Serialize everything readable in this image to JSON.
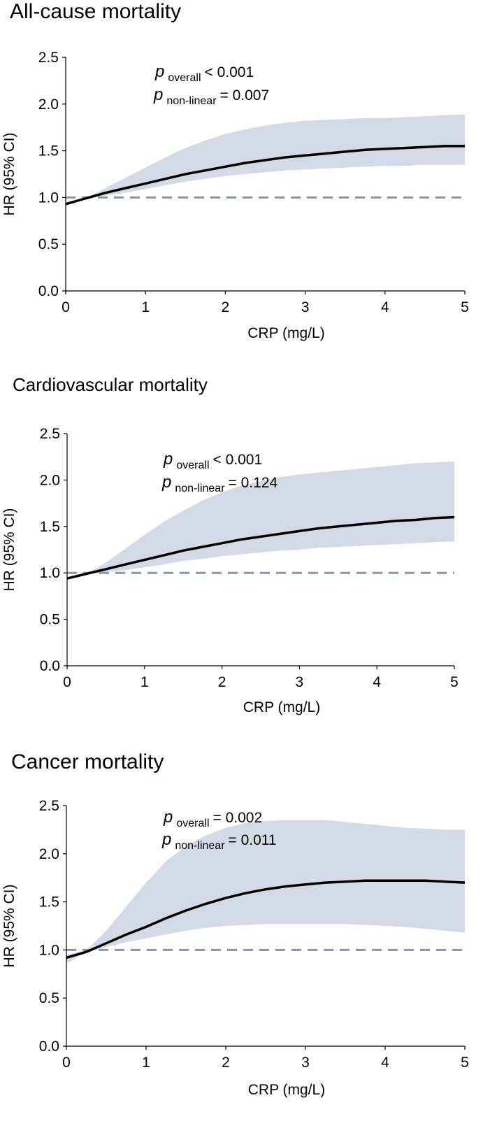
{
  "chart_data": [
    {
      "type": "line",
      "title": "All-cause mortality",
      "xlabel": "CRP (mg/L)",
      "ylabel": "HR (95% CI)",
      "xlim": [
        0,
        5
      ],
      "ylim": [
        0,
        2.5
      ],
      "x_ticks": [
        "0",
        "1",
        "2",
        "3",
        "4",
        "5"
      ],
      "y_ticks": [
        "0.0",
        "0.5",
        "1.0",
        "1.5",
        "2.0",
        "2.5"
      ],
      "reference_line": 1.0,
      "annotation": {
        "p_symbol": "p",
        "overall_label": "overall",
        "overall_value": "< 0.001",
        "nonlinear_label": "non-linear",
        "nonlinear_value": "= 0.007"
      },
      "series": [
        {
          "name": "HR",
          "x": [
            0,
            0.25,
            0.5,
            0.75,
            1.0,
            1.25,
            1.5,
            1.75,
            2.0,
            2.25,
            2.5,
            2.75,
            3.0,
            3.25,
            3.5,
            3.75,
            4.0,
            4.25,
            4.5,
            4.75,
            5.0
          ],
          "hr": [
            0.93,
            0.99,
            1.05,
            1.1,
            1.15,
            1.2,
            1.25,
            1.29,
            1.33,
            1.37,
            1.4,
            1.43,
            1.45,
            1.47,
            1.49,
            1.51,
            1.52,
            1.53,
            1.54,
            1.55,
            1.55
          ],
          "lower": [
            0.93,
            0.99,
            1.02,
            1.05,
            1.09,
            1.13,
            1.17,
            1.2,
            1.23,
            1.25,
            1.27,
            1.29,
            1.3,
            1.31,
            1.32,
            1.33,
            1.34,
            1.34,
            1.35,
            1.35,
            1.35
          ],
          "upper": [
            0.93,
            0.99,
            1.1,
            1.21,
            1.32,
            1.43,
            1.53,
            1.61,
            1.68,
            1.73,
            1.77,
            1.8,
            1.82,
            1.83,
            1.84,
            1.85,
            1.85,
            1.86,
            1.87,
            1.88,
            1.89
          ]
        }
      ]
    },
    {
      "type": "line",
      "title": "Cardiovascular mortality",
      "xlabel": "CRP (mg/L)",
      "ylabel": "HR (95% CI)",
      "xlim": [
        0,
        5
      ],
      "ylim": [
        0,
        2.5
      ],
      "x_ticks": [
        "0",
        "1",
        "2",
        "3",
        "4",
        "5"
      ],
      "y_ticks": [
        "0.0",
        "0.5",
        "1.0",
        "1.5",
        "2.0",
        "2.5"
      ],
      "reference_line": 1.0,
      "annotation": {
        "p_symbol": "p",
        "overall_label": "overall",
        "overall_value": "< 0.001",
        "nonlinear_label": "non-linear",
        "nonlinear_value": "= 0.124"
      },
      "series": [
        {
          "name": "HR",
          "x": [
            0,
            0.25,
            0.5,
            0.75,
            1.0,
            1.25,
            1.5,
            1.75,
            2.0,
            2.25,
            2.5,
            2.75,
            3.0,
            3.25,
            3.5,
            3.75,
            4.0,
            4.25,
            4.5,
            4.75,
            5.0
          ],
          "hr": [
            0.94,
            0.99,
            1.04,
            1.09,
            1.14,
            1.19,
            1.24,
            1.28,
            1.32,
            1.36,
            1.39,
            1.42,
            1.45,
            1.48,
            1.5,
            1.52,
            1.54,
            1.56,
            1.57,
            1.59,
            1.6
          ],
          "lower": [
            0.94,
            0.99,
            1.01,
            1.03,
            1.06,
            1.09,
            1.13,
            1.15,
            1.18,
            1.2,
            1.22,
            1.24,
            1.25,
            1.27,
            1.28,
            1.29,
            1.3,
            1.31,
            1.32,
            1.33,
            1.34
          ],
          "upper": [
            0.94,
            0.99,
            1.11,
            1.26,
            1.41,
            1.55,
            1.67,
            1.78,
            1.87,
            1.94,
            1.99,
            2.03,
            2.06,
            2.08,
            2.1,
            2.12,
            2.14,
            2.16,
            2.18,
            2.19,
            2.2
          ]
        }
      ]
    },
    {
      "type": "line",
      "title": "Cancer mortality",
      "xlabel": "CRP (mg/L)",
      "ylabel": "HR (95% CI)",
      "xlim": [
        0,
        5
      ],
      "ylim": [
        0,
        2.5
      ],
      "x_ticks": [
        "0",
        "1",
        "2",
        "3",
        "4",
        "5"
      ],
      "y_ticks": [
        "0.0",
        "0.5",
        "1.0",
        "1.5",
        "2.0",
        "2.5"
      ],
      "reference_line": 1.0,
      "annotation": {
        "p_symbol": "p",
        "overall_label": "overall",
        "overall_value": "= 0.002",
        "nonlinear_label": "non-linear",
        "nonlinear_value": "= 0.011"
      },
      "series": [
        {
          "name": "HR",
          "x": [
            0,
            0.25,
            0.5,
            0.75,
            1.0,
            1.25,
            1.5,
            1.75,
            2.0,
            2.25,
            2.5,
            2.75,
            3.0,
            3.25,
            3.5,
            3.75,
            4.0,
            4.25,
            4.5,
            4.75,
            5.0
          ],
          "hr": [
            0.92,
            0.98,
            1.07,
            1.16,
            1.24,
            1.33,
            1.41,
            1.48,
            1.54,
            1.59,
            1.63,
            1.66,
            1.68,
            1.7,
            1.71,
            1.72,
            1.72,
            1.72,
            1.72,
            1.71,
            1.7
          ],
          "lower": [
            0.86,
            0.98,
            1.03,
            1.08,
            1.12,
            1.16,
            1.2,
            1.23,
            1.25,
            1.26,
            1.27,
            1.27,
            1.27,
            1.27,
            1.27,
            1.26,
            1.25,
            1.24,
            1.22,
            1.2,
            1.18
          ],
          "upper": [
            0.95,
            1.0,
            1.2,
            1.45,
            1.7,
            1.92,
            2.08,
            2.19,
            2.27,
            2.32,
            2.34,
            2.35,
            2.35,
            2.35,
            2.33,
            2.31,
            2.29,
            2.27,
            2.26,
            2.25,
            2.25
          ]
        }
      ]
    }
  ],
  "style": {
    "ci_band_color": "#d3dae5",
    "line_color": "#000000",
    "reference_line_color": "#8497ad",
    "axis_color": "#000000"
  }
}
